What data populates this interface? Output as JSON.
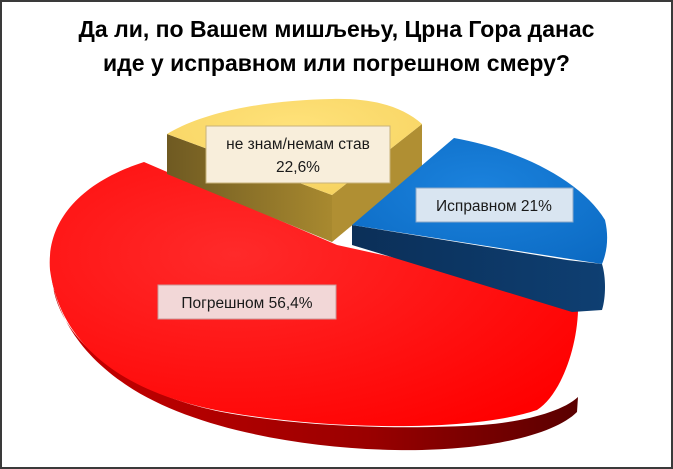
{
  "chart_data": {
    "type": "pie",
    "title_lines": [
      "Да ли, по Вашем мишљењу, Црна Гора данас",
      "иде у исправном или погрешном смеру?"
    ],
    "slices": [
      {
        "key": "wrong",
        "label": "Погрешном 56,4%",
        "value": 56.4,
        "color": "#ff0000",
        "dark": "#7a0000",
        "label_bg": "#f2d7d7"
      },
      {
        "key": "dontknow",
        "label_lines": [
          "не знам/немам став",
          "22,6%"
        ],
        "value": 22.6,
        "color": "#f7d35e",
        "dark": "#7a6526",
        "label_bg": "#f8eedb"
      },
      {
        "key": "right",
        "label": "Исправном 21%",
        "value": 21.0,
        "color": "#0a6fcb",
        "dark": "#0c2f57",
        "label_bg": "#d9e5f1"
      }
    ],
    "legend": "none",
    "style": "3d-exploded"
  }
}
